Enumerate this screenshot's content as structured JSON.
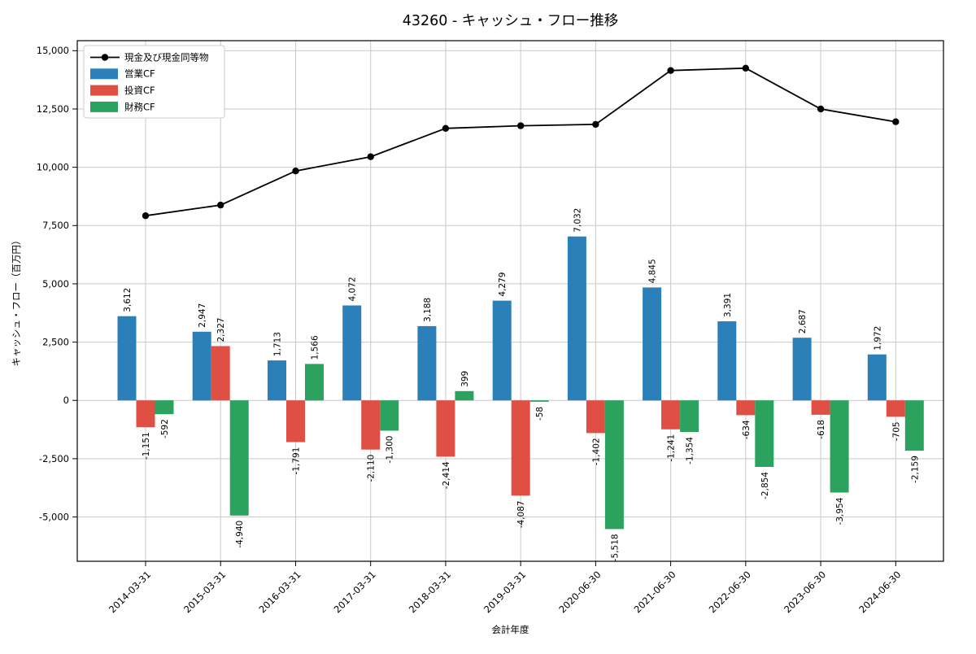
{
  "title": "43260 - キャッシュ・フロー推移",
  "chart_data": {
    "type": "bar",
    "title": "43260 - キャッシュ・フロー推移",
    "xlabel": "会計年度",
    "ylabel": "キャッシュ・フロー（百万円）",
    "categories": [
      "2014-03-31",
      "2015-03-31",
      "2016-03-31",
      "2017-03-31",
      "2018-03-31",
      "2019-03-31",
      "2020-06-30",
      "2021-06-30",
      "2022-06-30",
      "2023-06-30",
      "2024-06-30"
    ],
    "series": [
      {
        "name": "現金及び現金同等物",
        "type": "line",
        "color": "#000000",
        "values": [
          7920,
          8380,
          9840,
          10450,
          11670,
          11780,
          11840,
          14150,
          14250,
          12500,
          11950
        ]
      },
      {
        "name": "営業CF",
        "type": "bar",
        "color": "#2c80ba",
        "values": [
          3612,
          2947,
          1713,
          4072,
          3188,
          4279,
          7032,
          4845,
          3391,
          2687,
          1972
        ]
      },
      {
        "name": "投資CF",
        "type": "bar",
        "color": "#e04f44",
        "values": [
          -1151,
          2327,
          -1791,
          -2110,
          -2414,
          -4087,
          -1402,
          -1241,
          -634,
          -618,
          -705
        ]
      },
      {
        "name": "財務CF",
        "type": "bar",
        "color": "#2ba35f",
        "values": [
          -592,
          -4940,
          1566,
          -1300,
          399,
          -58,
          -5518,
          -1354,
          -2854,
          -3954,
          -2159
        ]
      }
    ],
    "yticks": [
      15000,
      12500,
      10000,
      7500,
      5000,
      2500,
      0,
      -2500,
      -5000
    ],
    "ylim": [
      -6900,
      15430
    ],
    "grid": true,
    "legend_position": "upper left",
    "bar_value_labels": true,
    "colors": {
      "grid": "#c9c9c9",
      "axis": "#000000",
      "legend_border": "#cccccc"
    }
  }
}
